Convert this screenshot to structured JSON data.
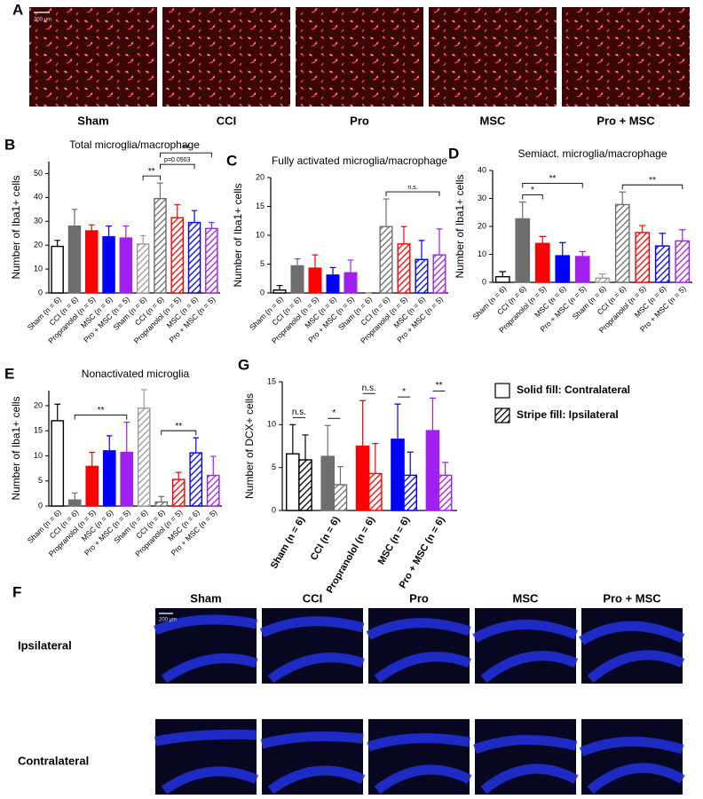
{
  "panel_a": {
    "letter": "A",
    "scale_bar": "200 µm",
    "labels": [
      "Sham",
      "CCI",
      "Pro",
      "MSC",
      "Pro + MSC"
    ]
  },
  "panel_f": {
    "letter": "F",
    "scale_bar": "200 µm",
    "columns": [
      "Sham",
      "CCI",
      "Pro",
      "MSC",
      "Pro + MSC"
    ],
    "rows": [
      "Ipsilateral",
      "Contralateral"
    ]
  },
  "chart_data": [
    {
      "type": "bar",
      "panel": "B",
      "title": "Total microglia/macrophage",
      "ylabel": "Number of Iba1+ cells",
      "categories": [
        "Sham (n = 6)",
        "CCI (n = 6)",
        "Propranolol (n = 5)",
        "MSC (n = 6)",
        "Pro + MSC (n = 5)",
        "Sham (n = 6)",
        "CCI (n = 6)",
        "Propranolol (n = 5)",
        "MSC (n = 6)",
        "Pro + MSC (n = 5)"
      ],
      "values": [
        19.5,
        28,
        26,
        23.5,
        23,
        20.5,
        39.5,
        31.5,
        29.5,
        27
      ],
      "errors": [
        2.5,
        7,
        2.5,
        4.5,
        5,
        3.5,
        6.5,
        5.5,
        5,
        2.5
      ],
      "colors": [
        "#000000",
        "#6e6e6e",
        "#ff0000",
        "#0000ff",
        "#a020f0",
        "#9a9a9a",
        "#6e6e6e",
        "#ff0000",
        "#0000ff",
        "#a020f0"
      ],
      "fills": [
        "#ffffff",
        "#6e6e6e",
        "#ff0000",
        "#0000ff",
        "#a020f0",
        "#ffffff",
        "#ffffff",
        "#ffffff",
        "#ffffff",
        "#ffffff"
      ],
      "hatch": [
        false,
        false,
        false,
        false,
        false,
        true,
        true,
        true,
        true,
        true
      ],
      "ylim": [
        0,
        55
      ],
      "yticks": [
        0,
        10,
        20,
        30,
        40,
        50
      ],
      "annotations": [
        {
          "text": "**",
          "from": 5,
          "to": 6
        },
        {
          "text": "p=0.0503",
          "from": 6,
          "to": 8
        },
        {
          "text": "**",
          "from": 6,
          "to": 9
        }
      ]
    },
    {
      "type": "bar",
      "panel": "C",
      "title": "Fully activated microglia/macrophage",
      "ylabel": "Number of Iba1+ cells",
      "categories": [
        "Sham (n = 6)",
        "CCI (n = 6)",
        "Propranolol (n = 5)",
        "MSC (n = 6)",
        "Pro + MSC (n = 5)",
        "Sham (n = 6)",
        "CCI (n = 6)",
        "Propranolol (n = 5)",
        "MSC (n = 6)",
        "Pro + MSC (n = 5)"
      ],
      "values": [
        0.5,
        4.7,
        4.3,
        3.1,
        3.5,
        0,
        11.5,
        8.5,
        5.8,
        6.6
      ],
      "errors": [
        0.8,
        1.2,
        2.3,
        1.3,
        2.2,
        0,
        4.8,
        3,
        3.3,
        4.5
      ],
      "colors": [
        "#000000",
        "#6e6e6e",
        "#ff0000",
        "#0000ff",
        "#a020f0",
        "#9a9a9a",
        "#6e6e6e",
        "#ff0000",
        "#0000ff",
        "#a020f0"
      ],
      "fills": [
        "#ffffff",
        "#6e6e6e",
        "#ff0000",
        "#0000ff",
        "#a020f0",
        "#ffffff",
        "#ffffff",
        "#ffffff",
        "#ffffff",
        "#ffffff"
      ],
      "hatch": [
        false,
        false,
        false,
        false,
        false,
        true,
        true,
        true,
        true,
        true
      ],
      "ylim": [
        0,
        20
      ],
      "yticks": [
        0,
        5,
        10,
        15,
        20
      ],
      "annotations": [
        {
          "text": "n.s.",
          "from": 6,
          "to": 9
        }
      ]
    },
    {
      "type": "bar",
      "panel": "D",
      "title": "Semiact. microglia/macrophage",
      "ylabel": "Number of Iba1+ cells",
      "categories": [
        "Sham (n = 6)",
        "CCI (n = 6)",
        "Propranolol (n = 5)",
        "MSC (n = 6)",
        "Pro + MSC (n = 5)",
        "Sham (n = 6)",
        "CCI (n = 6)",
        "Propranolol (n = 5)",
        "MSC (n = 6)",
        "Pro + MSC (n = 5)"
      ],
      "values": [
        2,
        22.7,
        13.9,
        9.5,
        9.2,
        1.5,
        27.8,
        17.8,
        13,
        14.8
      ],
      "errors": [
        1.8,
        6,
        2.5,
        4.7,
        1.8,
        1.5,
        4.5,
        2.5,
        4.5,
        4
      ],
      "colors": [
        "#000000",
        "#6e6e6e",
        "#ff0000",
        "#0000ff",
        "#a020f0",
        "#9a9a9a",
        "#6e6e6e",
        "#ff0000",
        "#0000ff",
        "#a020f0"
      ],
      "fills": [
        "#ffffff",
        "#6e6e6e",
        "#ff0000",
        "#0000ff",
        "#a020f0",
        "#ffffff",
        "#ffffff",
        "#ffffff",
        "#ffffff",
        "#ffffff"
      ],
      "hatch": [
        false,
        false,
        false,
        false,
        false,
        true,
        true,
        true,
        true,
        true
      ],
      "ylim": [
        0,
        40
      ],
      "yticks": [
        0,
        10,
        20,
        30,
        40
      ],
      "annotations": [
        {
          "text": "*",
          "from": 1,
          "to": 2
        },
        {
          "text": "**",
          "from": 1,
          "to": 4
        },
        {
          "text": "**",
          "from": 6,
          "to": 9
        }
      ]
    },
    {
      "type": "bar",
      "panel": "E",
      "title": "Nonactivated microglia",
      "ylabel": "Number of Iba1+ cells",
      "categories": [
        "Sham (n = 6)",
        "CCI (n = 6)",
        "Propranolol (n = 5)",
        "MSC (n = 6)",
        "Pro + MSC (n = 5)",
        "Sham (n = 6)",
        "CCI (n = 6)",
        "Propranolol (n = 5)",
        "MSC (n = 6)",
        "Pro + MSC (n = 5)"
      ],
      "values": [
        17,
        1.2,
        7.9,
        11,
        10.7,
        19.5,
        0.8,
        5.3,
        10.6,
        6.1
      ],
      "errors": [
        3.3,
        1.4,
        2.8,
        3,
        6,
        3.7,
        1.1,
        1.4,
        3,
        3.8
      ],
      "colors": [
        "#000000",
        "#6e6e6e",
        "#ff0000",
        "#0000ff",
        "#a020f0",
        "#9a9a9a",
        "#6e6e6e",
        "#ff0000",
        "#0000ff",
        "#a020f0"
      ],
      "fills": [
        "#ffffff",
        "#6e6e6e",
        "#ff0000",
        "#0000ff",
        "#a020f0",
        "#ffffff",
        "#ffffff",
        "#ffffff",
        "#ffffff",
        "#ffffff"
      ],
      "hatch": [
        false,
        false,
        false,
        false,
        false,
        true,
        true,
        true,
        true,
        true
      ],
      "ylim": [
        0,
        23
      ],
      "yticks": [
        0,
        5,
        10,
        15,
        20
      ],
      "annotations": [
        {
          "text": "**",
          "from": 1,
          "to": 4
        },
        {
          "text": "**",
          "from": 6,
          "to": 8
        }
      ]
    },
    {
      "type": "grouped_bar",
      "panel": "G",
      "ylabel": "Number of DCX+ cells",
      "categories": [
        "Sham (n = 6)",
        "CCI (n = 6)",
        "Propranolol (n = 6)",
        "MSC (n = 6)",
        "Pro + MSC (n = 6)"
      ],
      "colors": [
        "#000000",
        "#6e6e6e",
        "#ff0000",
        "#0000ff",
        "#a020f0"
      ],
      "series": [
        {
          "name": "Solid fill: Contralateral",
          "hatch": false,
          "values": [
            6.6,
            6.3,
            7.5,
            8.3,
            9.3
          ],
          "errors": [
            3.4,
            3.6,
            5.3,
            4.1,
            3.8
          ]
        },
        {
          "name": "Stripe fill: Ipsilateral",
          "hatch": true,
          "values": [
            5.9,
            3,
            4.3,
            4.1,
            4.1
          ],
          "errors": [
            2.9,
            2.1,
            3.5,
            2.7,
            1.5
          ]
        }
      ],
      "ylim": [
        0,
        15
      ],
      "yticks": [
        0,
        5,
        10,
        15
      ],
      "annotations": [
        {
          "text": "n.s.",
          "group": 0
        },
        {
          "text": "*",
          "group": 1
        },
        {
          "text": "n.s.",
          "group": 2
        },
        {
          "text": "*",
          "group": 3
        },
        {
          "text": "**",
          "group": 4
        }
      ]
    }
  ]
}
